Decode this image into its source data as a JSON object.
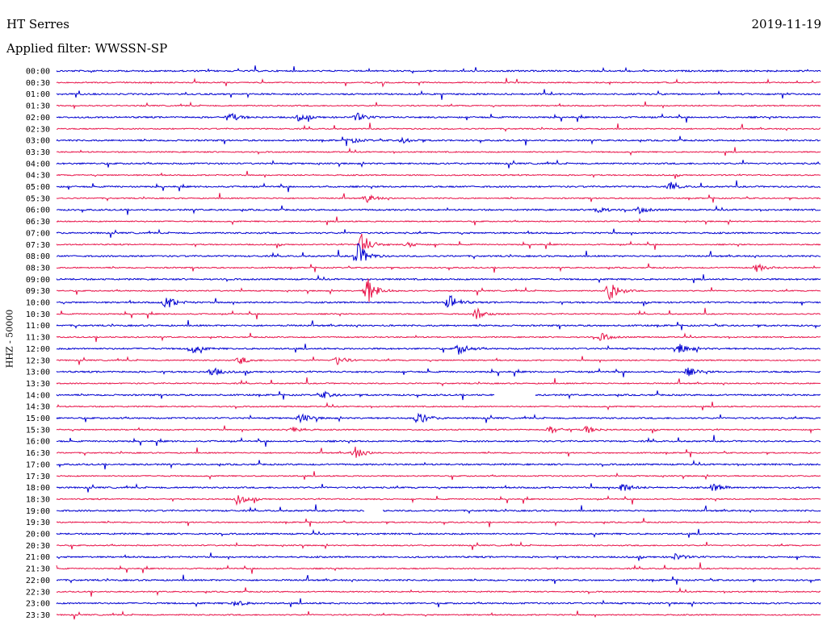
{
  "header": {
    "station": "HT Serres",
    "date": "2019-11-19",
    "filter": "Applied filter: WWSSN-SP"
  },
  "colors": {
    "odd": "#0000d0",
    "even": "#e8144a"
  },
  "chart_data": {
    "type": "line",
    "title": "HT Serres",
    "ylabel": "HHZ - 50000",
    "time_labels": [
      "00:00",
      "00:30",
      "01:00",
      "01:30",
      "02:00",
      "02:30",
      "03:00",
      "03:30",
      "04:00",
      "04:30",
      "05:00",
      "05:30",
      "06:00",
      "06:30",
      "07:00",
      "07:30",
      "08:00",
      "08:30",
      "09:00",
      "09:30",
      "10:00",
      "10:30",
      "11:00",
      "11:30",
      "12:00",
      "12:30",
      "13:00",
      "13:30",
      "14:00",
      "14:30",
      "15:00",
      "15:30",
      "16:00",
      "16:30",
      "17:00",
      "17:30",
      "18:00",
      "18:30",
      "19:00",
      "19:30",
      "20:00",
      "20:30",
      "21:00",
      "21:30",
      "22:00",
      "22:30",
      "23:00",
      "23:30"
    ],
    "trace_minutes": 30,
    "gaps": [
      {
        "trace": 28,
        "start_min": 17.2,
        "end_min": 18.8
      },
      {
        "trace": 38,
        "start_min": 12.1,
        "end_min": 12.8
      }
    ],
    "events": [
      {
        "trace": 4,
        "min": 6.8,
        "amp": 6
      },
      {
        "trace": 4,
        "min": 9.5,
        "amp": 4
      },
      {
        "trace": 4,
        "min": 11.8,
        "amp": 5
      },
      {
        "trace": 6,
        "min": 11.5,
        "amp": 4
      },
      {
        "trace": 6,
        "min": 13.6,
        "amp": 3
      },
      {
        "trace": 10,
        "min": 24.1,
        "amp": 4
      },
      {
        "trace": 11,
        "min": 12.2,
        "amp": 5
      },
      {
        "trace": 12,
        "min": 21.2,
        "amp": 5
      },
      {
        "trace": 12,
        "min": 22.9,
        "amp": 4
      },
      {
        "trace": 15,
        "min": 12.0,
        "amp": 14
      },
      {
        "trace": 15,
        "min": 13.8,
        "amp": 3
      },
      {
        "trace": 16,
        "min": 11.8,
        "amp": 18
      },
      {
        "trace": 17,
        "min": 27.5,
        "amp": 5
      },
      {
        "trace": 19,
        "min": 12.2,
        "amp": 20
      },
      {
        "trace": 19,
        "min": 21.7,
        "amp": 14
      },
      {
        "trace": 20,
        "min": 4.3,
        "amp": 9
      },
      {
        "trace": 20,
        "min": 15.4,
        "amp": 11
      },
      {
        "trace": 21,
        "min": 16.5,
        "amp": 7
      },
      {
        "trace": 23,
        "min": 21.4,
        "amp": 5
      },
      {
        "trace": 24,
        "min": 5.3,
        "amp": 6
      },
      {
        "trace": 24,
        "min": 15.8,
        "amp": 7
      },
      {
        "trace": 24,
        "min": 24.5,
        "amp": 6
      },
      {
        "trace": 25,
        "min": 7.2,
        "amp": 5
      },
      {
        "trace": 25,
        "min": 11.0,
        "amp": 6
      },
      {
        "trace": 26,
        "min": 6.1,
        "amp": 6
      },
      {
        "trace": 26,
        "min": 24.8,
        "amp": 5
      },
      {
        "trace": 28,
        "min": 10.5,
        "amp": 4
      },
      {
        "trace": 30,
        "min": 9.6,
        "amp": 6
      },
      {
        "trace": 30,
        "min": 14.2,
        "amp": 8
      },
      {
        "trace": 31,
        "min": 9.2,
        "amp": 6
      },
      {
        "trace": 31,
        "min": 19.4,
        "amp": 5
      },
      {
        "trace": 31,
        "min": 20.8,
        "amp": 5
      },
      {
        "trace": 33,
        "min": 11.7,
        "amp": 8
      },
      {
        "trace": 36,
        "min": 22.2,
        "amp": 6
      },
      {
        "trace": 36,
        "min": 25.8,
        "amp": 5
      },
      {
        "trace": 37,
        "min": 7.1,
        "amp": 7
      },
      {
        "trace": 42,
        "min": 24.3,
        "amp": 4
      },
      {
        "trace": 46,
        "min": 7.0,
        "amp": 4
      }
    ]
  }
}
